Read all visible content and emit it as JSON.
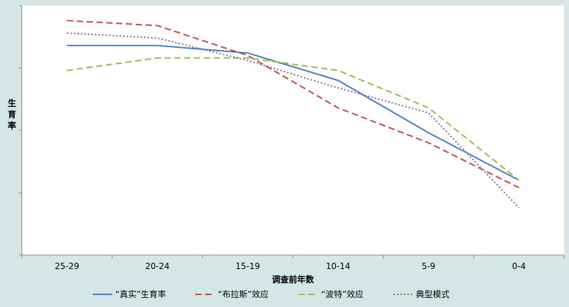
{
  "chart_data": {
    "type": "line",
    "title": "",
    "xlabel": "调查前年数",
    "ylabel": "生育率",
    "categories": [
      "25-29",
      "20-24",
      "15-19",
      "10-14",
      "5-9",
      "0-4"
    ],
    "ylim": [
      0,
      100
    ],
    "grid": false,
    "legend_position": "bottom",
    "y_tick_labels_shown": false,
    "series": [
      {
        "name": "“真实”生育率",
        "color": "#4a7ebb",
        "dash": "solid",
        "values": [
          84,
          84,
          81,
          70,
          49,
          30
        ]
      },
      {
        "name": "“布拉斯”效应",
        "color": "#be4b48",
        "dash": "dashed",
        "values": [
          94,
          92,
          80,
          59,
          45,
          27
        ]
      },
      {
        "name": "“波特”效应",
        "color": "#98b954",
        "dash": "dashed",
        "values": [
          74,
          79,
          79,
          74,
          59,
          30
        ]
      },
      {
        "name": "典型模式",
        "color": "#7d60a0",
        "dash": "dotted",
        "values": [
          89,
          87,
          78,
          67,
          57,
          19
        ]
      }
    ]
  }
}
